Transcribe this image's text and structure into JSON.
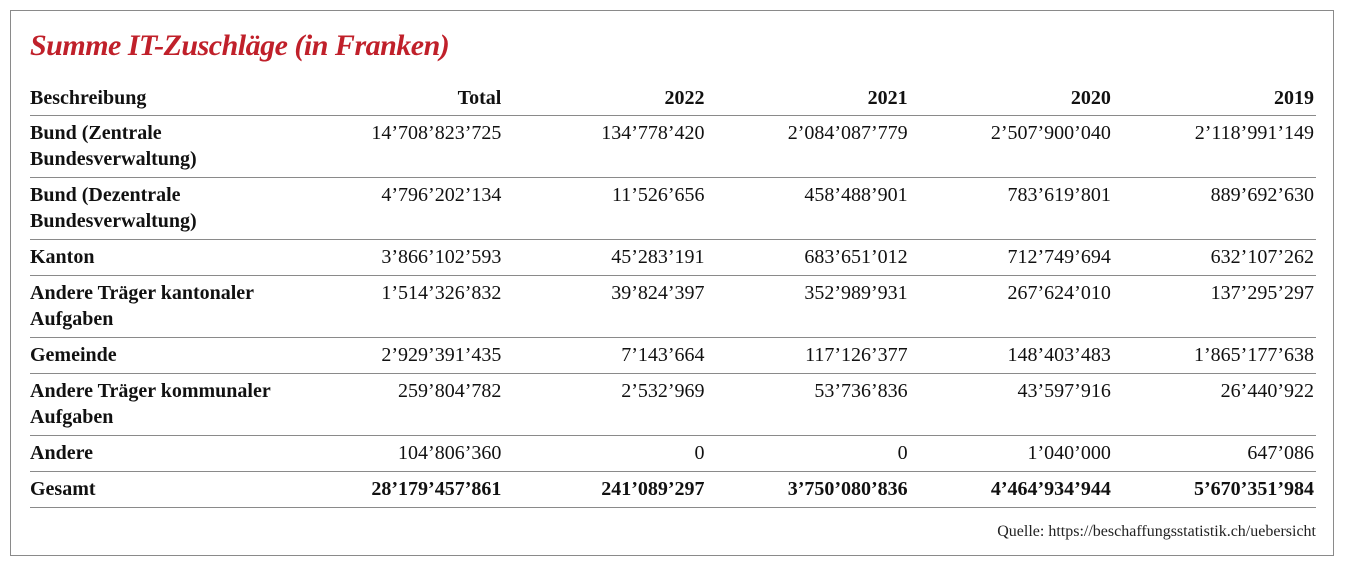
{
  "title": "Summe IT-Zuschläge (in Franken)",
  "headers": [
    "Beschreibung",
    "Total",
    "2022",
    "2021",
    "2020",
    "2019"
  ],
  "rows": [
    {
      "label": "Bund (Zentrale Bundesverwaltung)",
      "values": [
        "14’708’823’725",
        "134’778’420",
        "2’084’087’779",
        "2’507’900’040",
        "2’118’991’149"
      ]
    },
    {
      "label": "Bund (Dezentrale Bundesverwaltung)",
      "values": [
        "4’796’202’134",
        "11’526’656",
        "458’488’901",
        "783’619’801",
        "889’692’630"
      ]
    },
    {
      "label": "Kanton",
      "values": [
        "3’866’102’593",
        "45’283’191",
        "683’651’012",
        "712’749’694",
        "632’107’262"
      ]
    },
    {
      "label": "Andere Träger kantonaler Aufgaben",
      "values": [
        "1’514’326’832",
        "39’824’397",
        "352’989’931",
        "267’624’010",
        "137’295’297"
      ]
    },
    {
      "label": "Gemeinde",
      "values": [
        "2’929’391’435",
        "7’143’664",
        "117’126’377",
        "148’403’483",
        "1’865’177’638"
      ]
    },
    {
      "label": "Andere Träger kommunaler Aufgaben",
      "values": [
        "259’804’782",
        "2’532’969",
        "53’736’836",
        "43’597’916",
        "26’440’922"
      ]
    },
    {
      "label": "Andere",
      "values": [
        "104’806’360",
        "0",
        "0",
        "1’040’000",
        "647’086"
      ]
    }
  ],
  "total": {
    "label": "Gesamt",
    "values": [
      "28’179’457’861",
      "241’089’297",
      "3’750’080’836",
      "4’464’934’944",
      "5’670’351’984"
    ]
  },
  "source": "Quelle: https://beschaffungsstatistik.ch/uebersicht",
  "colors": {
    "title": "#c0202a",
    "rule": "#8a8a8a"
  }
}
